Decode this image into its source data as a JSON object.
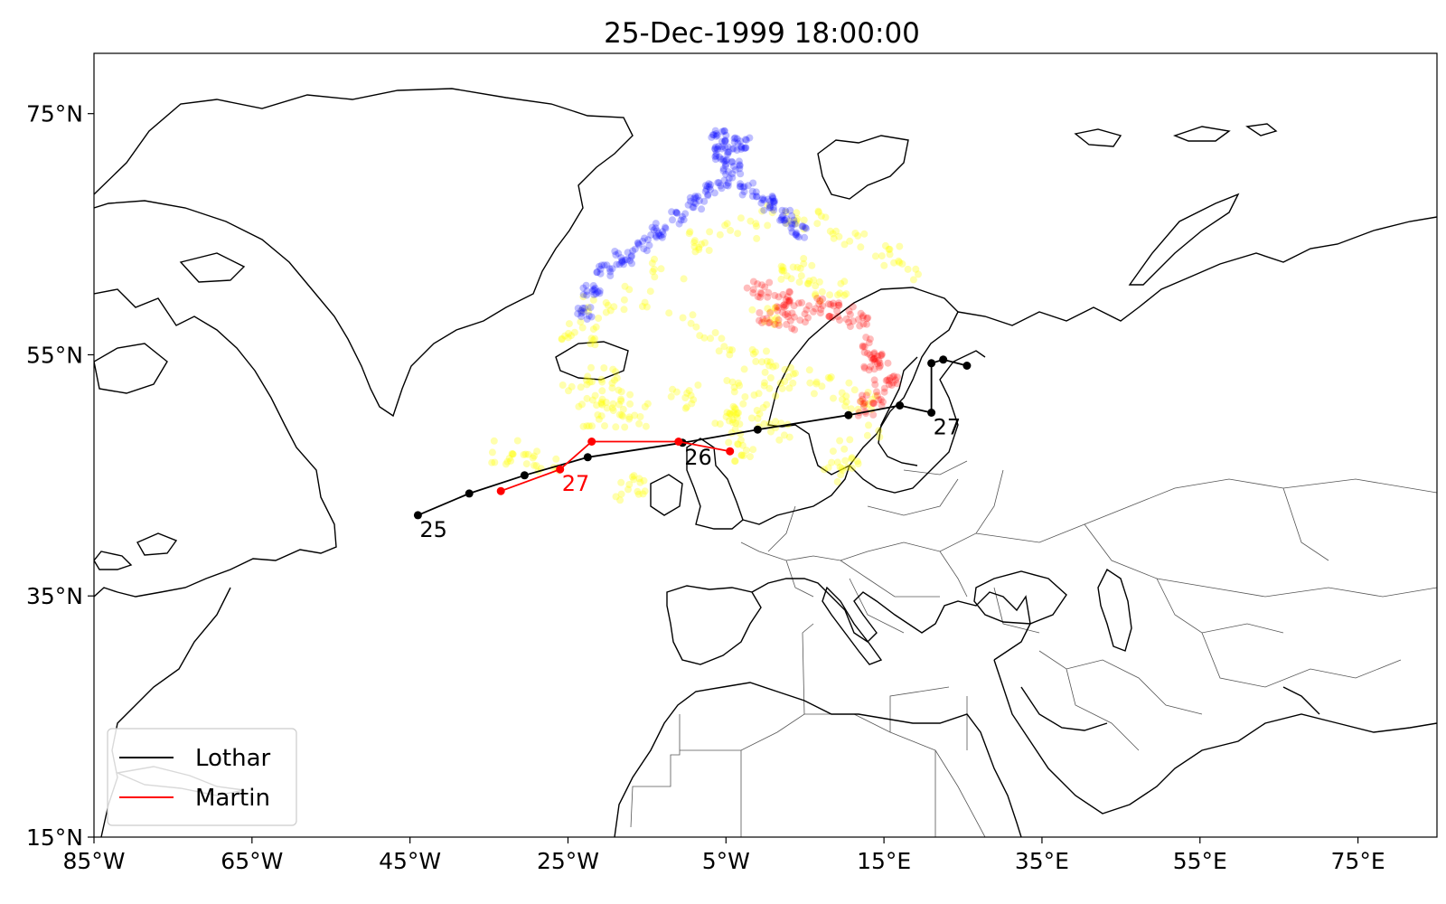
{
  "title": "25-Dec-1999 18:00:00",
  "x_ticks": [
    "85°W",
    "65°W",
    "45°W",
    "25°W",
    "5°W",
    "15°E",
    "35°E",
    "55°E",
    "75°E"
  ],
  "x_tick_values": [
    -85,
    -65,
    -45,
    -25,
    -5,
    15,
    35,
    55,
    75
  ],
  "y_ticks": [
    "75°N",
    "55°N",
    "35°N",
    "15°N"
  ],
  "y_tick_values": [
    75,
    55,
    35,
    15
  ],
  "extent": {
    "lon": [
      -85,
      85
    ],
    "lat": [
      15,
      80
    ]
  },
  "colors": {
    "lothar": "#000000",
    "martin": "#ff0000",
    "particles_blue": "#0000ff",
    "particles_yellow": "#ffff00",
    "particles_red": "#ff0000",
    "coastline": "#000000",
    "borders": "#555555"
  },
  "legend": {
    "placement": "lower-left",
    "entries": [
      "Lothar",
      "Martin"
    ]
  },
  "chart_data": {
    "type": "map-tracks",
    "title": "25-Dec-1999 18:00:00",
    "series": [
      {
        "name": "Lothar",
        "color": "#000000",
        "points": [
          {
            "lon": -44.0,
            "lat": 41.7
          },
          {
            "lon": -37.5,
            "lat": 43.5
          },
          {
            "lon": -30.5,
            "lat": 45.0
          },
          {
            "lon": -22.5,
            "lat": 46.5
          },
          {
            "lon": -10.5,
            "lat": 47.7
          },
          {
            "lon": -1.0,
            "lat": 48.8
          },
          {
            "lon": 10.5,
            "lat": 50.0
          },
          {
            "lon": 17.0,
            "lat": 50.8
          },
          {
            "lon": 21.0,
            "lat": 50.2
          },
          {
            "lon": 21.0,
            "lat": 54.3
          },
          {
            "lon": 22.5,
            "lat": 54.6
          },
          {
            "lon": 25.5,
            "lat": 54.1
          }
        ]
      },
      {
        "name": "Martin",
        "color": "#ff0000",
        "points": [
          {
            "lon": -33.5,
            "lat": 43.7
          },
          {
            "lon": -26.0,
            "lat": 45.5
          },
          {
            "lon": -22.0,
            "lat": 47.8
          },
          {
            "lon": -11.0,
            "lat": 47.8
          },
          {
            "lon": -4.5,
            "lat": 47.0
          }
        ]
      }
    ],
    "day_labels": [
      {
        "text": "25",
        "color": "#000000",
        "lon": -44.0,
        "lat": 41.7
      },
      {
        "text": "26",
        "color": "#000000",
        "lon": -10.5,
        "lat": 47.7
      },
      {
        "text": "27",
        "color": "#000000",
        "lon": 21.0,
        "lat": 50.2
      },
      {
        "text": "27",
        "color": "#ff0000",
        "lon": -26.0,
        "lat": 45.5
      }
    ],
    "particle_groups": [
      {
        "color": "#0000ff",
        "label": "blue particles, East Greenland to Svalbard"
      },
      {
        "color": "#ffff00",
        "label": "yellow particles, Norwegian Sea to Scandinavia"
      },
      {
        "color": "#ff0000",
        "label": "red particles, northern Scandinavia"
      }
    ]
  }
}
